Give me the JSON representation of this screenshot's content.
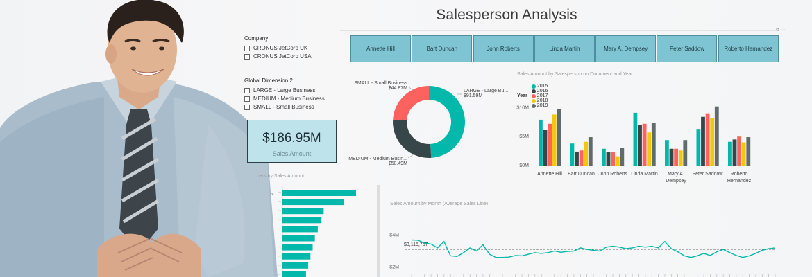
{
  "title": "Salesperson Analysis",
  "company_slicer": {
    "header": "Company",
    "options": [
      "CRONUS JetCorp UK",
      "CRONUS JetCorp USA"
    ]
  },
  "dimension_slicer": {
    "header": "Global Dimension 2",
    "options": [
      "LARGE - Large Business",
      "MEDIUM - Medium Business",
      "SMALL - Small Business"
    ]
  },
  "kpi_card": {
    "value": "$186.95M",
    "label": "Sales Amount"
  },
  "salesperson_tiles": [
    "Annette Hill",
    "Bart Duncan",
    "John Roberts",
    "Linda Martin",
    "Mary A. Dempsey",
    "Peter Saddow",
    "Roberto Hernandez"
  ],
  "colors": {
    "tile": "#7fc4d3",
    "teal": "#01b8aa",
    "dark": "#374649",
    "red": "#fd625e",
    "yellow": "#f2c80f",
    "gray": "#5f6b6d"
  },
  "customers_chart_title": "ners by Sales Amount",
  "customers_label_fragment": "v...",
  "chart_data": [
    {
      "type": "pie",
      "labels": [
        "LARGE - Large Bu...",
        "MEDIUM - Medium Busin...",
        "SMALL - Small Business"
      ],
      "values": [
        91.59,
        50.49,
        44.87
      ],
      "value_labels": [
        "$91.59M",
        "$50.49M",
        "$44.87M"
      ]
    },
    {
      "type": "bar",
      "title": "Sales Amount by Salesperson on Document and Year",
      "legend_title": "Year",
      "categories": [
        "Annette Hill",
        "Bart Duncan",
        "John Roberts",
        "Linda Martin",
        "Mary A. Dempsey",
        "Peter Saddow",
        "Roberto Hernandez"
      ],
      "series": [
        {
          "name": "2015",
          "values": [
            7.9,
            3.8,
            2.9,
            9.1,
            4.4,
            6.2,
            4.1
          ]
        },
        {
          "name": "2016",
          "values": [
            6.1,
            2.4,
            2.3,
            7.0,
            2.9,
            8.4,
            4.5
          ]
        },
        {
          "name": "2017",
          "values": [
            7.2,
            2.6,
            2.3,
            7.2,
            2.9,
            9.0,
            5.0
          ]
        },
        {
          "name": "2018",
          "values": [
            8.8,
            4.1,
            1.6,
            5.7,
            2.6,
            8.2,
            4.0
          ]
        },
        {
          "name": "2019",
          "values": [
            9.7,
            4.9,
            3.0,
            7.3,
            4.4,
            10.2,
            4.9
          ]
        }
      ],
      "yticks": [
        "$0M",
        "$5M",
        "$10M"
      ],
      "ylim": [
        0,
        11
      ]
    },
    {
      "type": "bar",
      "orientation": "horizontal",
      "values": [
        1.0,
        0.84,
        0.56,
        0.53,
        0.48,
        0.44,
        0.41,
        0.38,
        0.35,
        0.32,
        0.28
      ]
    },
    {
      "type": "line",
      "title": "Sales Amount by Month (Average Sales Line)",
      "yticks": [
        "$4M",
        "$2M"
      ],
      "reference_label": "$3,115,757",
      "reference_value": 3.115757,
      "ylim": [
        1.8,
        4.2
      ],
      "values": [
        3.7,
        3.68,
        3.5,
        3.44,
        3.2,
        3.6,
        2.7,
        2.66,
        2.9,
        3.2,
        3.0,
        3.4,
        2.8,
        2.6,
        2.6,
        2.62,
        2.72,
        2.7,
        2.8,
        2.9,
        2.85,
        2.9,
        3.0,
        2.92,
        2.98,
        3.0,
        3.2,
        3.1,
        3.05,
        3.0,
        3.25,
        3.3,
        3.25,
        3.15,
        3.2,
        3.3,
        3.25,
        3.3,
        3.2,
        3.6,
        3.15,
        2.95,
        2.7,
        2.6,
        2.7,
        2.85,
        2.72,
        2.95,
        3.1,
        2.9,
        2.72,
        2.6,
        2.7,
        2.85,
        3.05,
        3.15,
        3.2
      ]
    }
  ]
}
